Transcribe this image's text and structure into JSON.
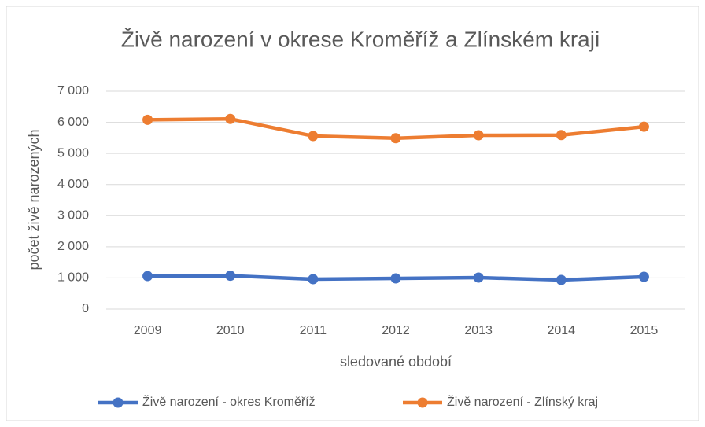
{
  "chart_data": {
    "type": "line",
    "title": "Živě narození v okrese Kroměříž a Zlínském kraji",
    "x_label": "sledované období",
    "y_label": "počet živě narozených",
    "categories": [
      "2009",
      "2010",
      "2011",
      "2012",
      "2013",
      "2014",
      "2015"
    ],
    "series": [
      {
        "name": "Živě narození - okres Kroměříž",
        "color": "#4472c4",
        "values": [
          1060,
          1070,
          960,
          985,
          1010,
          935,
          1035
        ]
      },
      {
        "name": "Živě narození - Zlínský kraj",
        "color": "#ed7d31",
        "values": [
          6080,
          6110,
          5560,
          5490,
          5585,
          5590,
          5860
        ]
      }
    ],
    "ylim": [
      0,
      7000
    ],
    "yticks": [
      0,
      {
        "value": 1000,
        "label": "1 000"
      },
      {
        "value": 2000,
        "label": "2 000"
      },
      {
        "value": 3000,
        "label": "3 000"
      },
      {
        "value": 4000,
        "label": "4 000"
      },
      {
        "value": 5000,
        "label": "5 000"
      },
      {
        "value": 6000,
        "label": "6 000"
      },
      {
        "value": 7000,
        "label": "7 000"
      }
    ],
    "grid": true,
    "legend": "bottom"
  }
}
